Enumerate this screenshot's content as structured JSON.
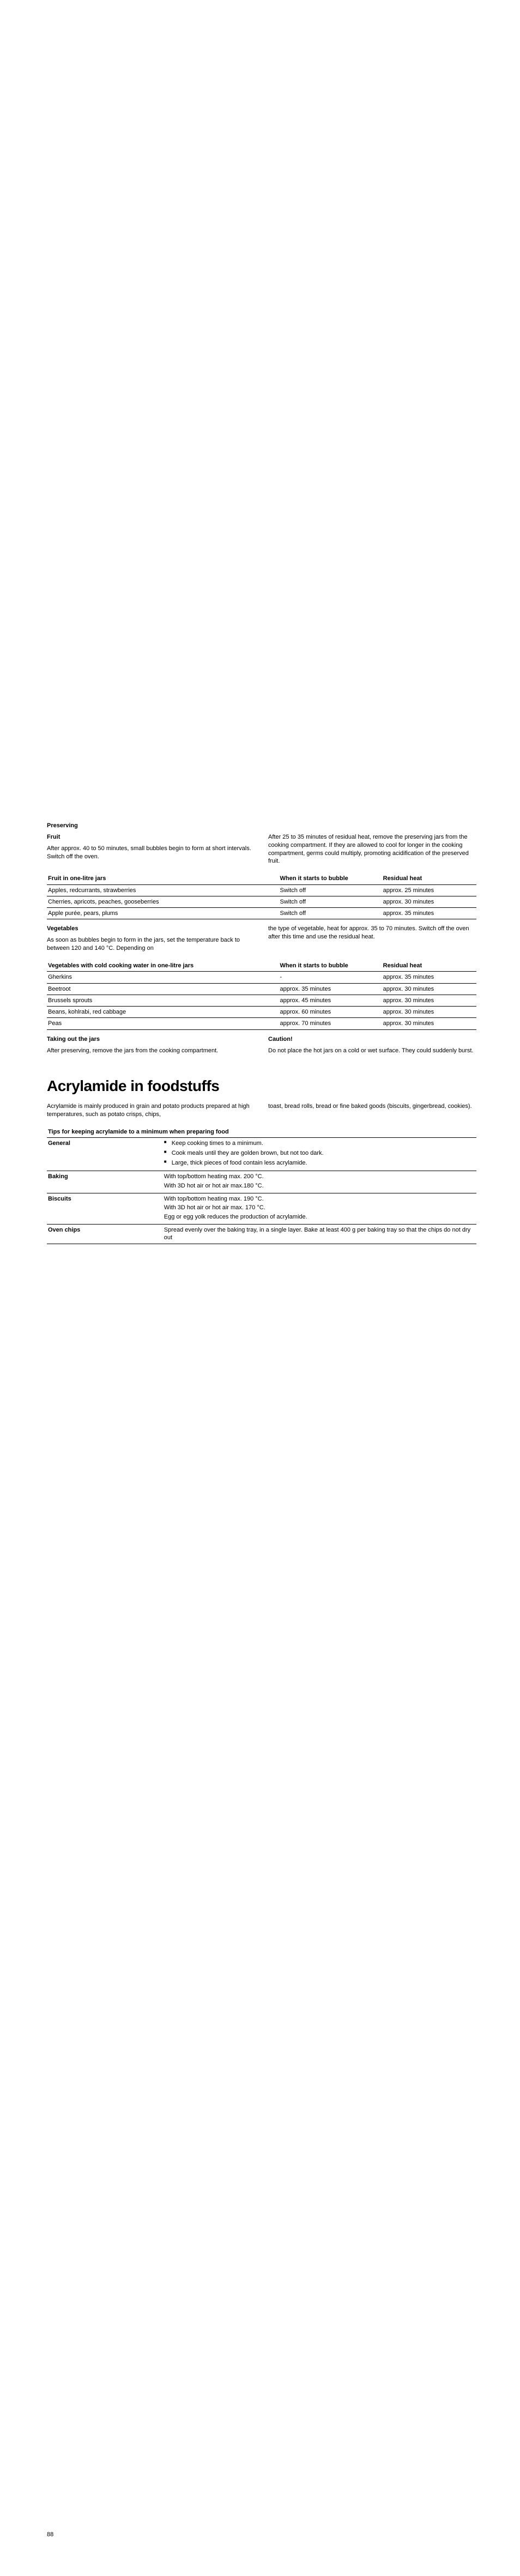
{
  "preserving": {
    "heading": "Preserving",
    "fruit": {
      "heading": "Fruit",
      "text_left": "After approx. 40 to 50 minutes, small bubbles begin to form at short intervals. Switch off the oven.",
      "text_right": "After 25 to 35 minutes of residual heat, remove the preserving jars from the cooking compartment. If they are allowed to cool for longer in the cooking compartment, germs could multiply, promoting acidification of the preserved fruit.",
      "table": {
        "headers": [
          "Fruit in one-litre jars",
          "When it starts to bubble",
          "Residual heat"
        ],
        "rows": [
          [
            "Apples, redcurrants, strawberries",
            "Switch off",
            "approx. 25 minutes"
          ],
          [
            "Cherries, apricots, peaches, gooseberries",
            "Switch off",
            "approx. 30 minutes"
          ],
          [
            "Apple purée, pears, plums",
            "Switch off",
            "approx. 35 minutes"
          ]
        ]
      }
    },
    "vegetables": {
      "heading": "Vegetables",
      "text_left": "As soon as bubbles begin to form in the jars, set the temperature back to between 120 and 140 °C. Depending on",
      "text_right": "the type of vegetable, heat for approx. 35 to 70 minutes. Switch off the oven after this time and use the residual heat.",
      "table": {
        "headers": [
          "Vegetables with cold cooking water in one-litre jars",
          "When it starts to bubble",
          "Residual heat"
        ],
        "rows": [
          [
            "Gherkins",
            "-",
            "approx. 35 minutes"
          ],
          [
            "Beetroot",
            "approx. 35 minutes",
            "approx. 30 minutes"
          ],
          [
            "Brussels sprouts",
            "approx. 45 minutes",
            "approx. 30 minutes"
          ],
          [
            "Beans, kohlrabi, red cabbage",
            "approx. 60 minutes",
            "approx. 30 minutes"
          ],
          [
            "Peas",
            "approx. 70 minutes",
            "approx. 30 minutes"
          ]
        ]
      }
    },
    "taking_out": {
      "heading_left": "Taking out the jars",
      "text_left": "After preserving, remove the jars from the cooking compartment.",
      "heading_right": "Caution!",
      "text_right": "Do not place the hot jars on a cold or wet surface. They could suddenly burst."
    }
  },
  "acrylamide": {
    "title": "Acrylamide in foodstuffs",
    "intro_left": "Acrylamide is mainly produced in grain and potato products prepared at high temperatures, such as potato crisps, chips,",
    "intro_right": "toast, bread rolls, bread or fine baked goods (biscuits, gingerbread, cookies).",
    "tips_title": "Tips for keeping acrylamide to a minimum when preparing food",
    "tips_rows": [
      {
        "left": "General",
        "right_type": "list",
        "right": [
          "Keep cooking times to a minimum.",
          "Cook meals until they are golden brown, but not too dark.",
          "Large, thick pieces of food contain less acrylamide."
        ]
      },
      {
        "left": "Baking",
        "right_type": "multi",
        "right": [
          "With top/bottom heating max. 200 °C.",
          "With 3D hot air or hot air max.180 °C."
        ]
      },
      {
        "left": "Biscuits",
        "right_type": "multi",
        "right": [
          "With top/bottom heating max. 190 °C.",
          "With 3D hot air or hot air max. 170 °C.",
          "Egg or egg yolk reduces the production of acrylamide."
        ]
      },
      {
        "left": "Oven chips",
        "right_type": "text",
        "right": "Spread evenly over the baking tray, in a single layer. Bake at least 400 g per baking tray so that the chips do not dry out"
      }
    ]
  },
  "page_number": "88"
}
